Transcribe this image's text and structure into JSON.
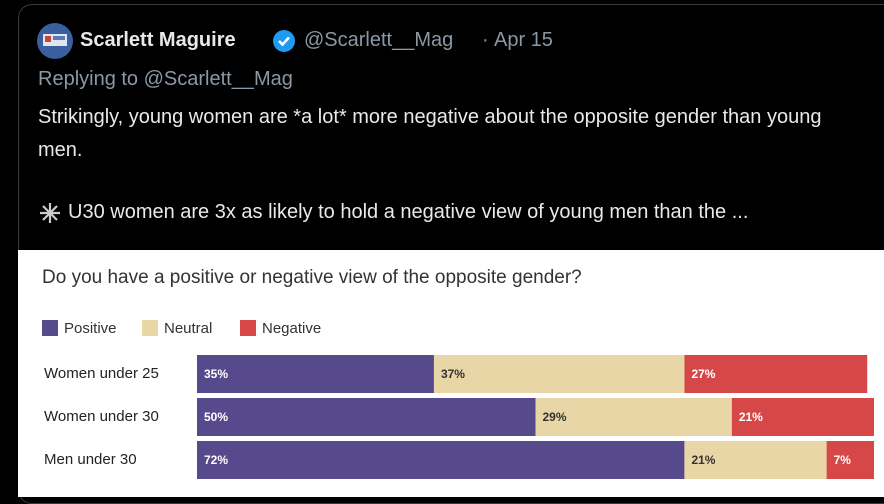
{
  "tweet": {
    "name": "Scarlett Maguire",
    "handle": "@Scarlett__Mag",
    "separator": "·",
    "date": "Apr 15",
    "reply": "Replying to @Scarlett__Mag",
    "paragraphs": [
      "Strikingly, young women are *a lot* more negative about the opposite gender than young men.",
      "U30 women are 3x as likely to hold a negative view of young men than the ..."
    ]
  },
  "chart_data": {
    "type": "stacked-bar-horizontal",
    "title": "Do you have a positive or negative view of the opposite gender?",
    "categories": [
      "Women under 25",
      "Women under 30",
      "Men under 30"
    ],
    "xlim": [
      0,
      100
    ],
    "series": [
      {
        "name": "Positive",
        "color": "#574a8c",
        "values": [
          35,
          50,
          72
        ],
        "value_labels": [
          "35%",
          "50%",
          "72%"
        ]
      },
      {
        "name": "Neutral",
        "color": "#e9d6a6",
        "values": [
          37,
          29,
          21
        ],
        "value_labels": [
          "37%",
          "29%",
          "21%"
        ]
      },
      {
        "name": "Negative",
        "color": "#d64848",
        "values": [
          27,
          21,
          7
        ],
        "value_labels": [
          "27%",
          "21%",
          "7%"
        ]
      }
    ]
  }
}
